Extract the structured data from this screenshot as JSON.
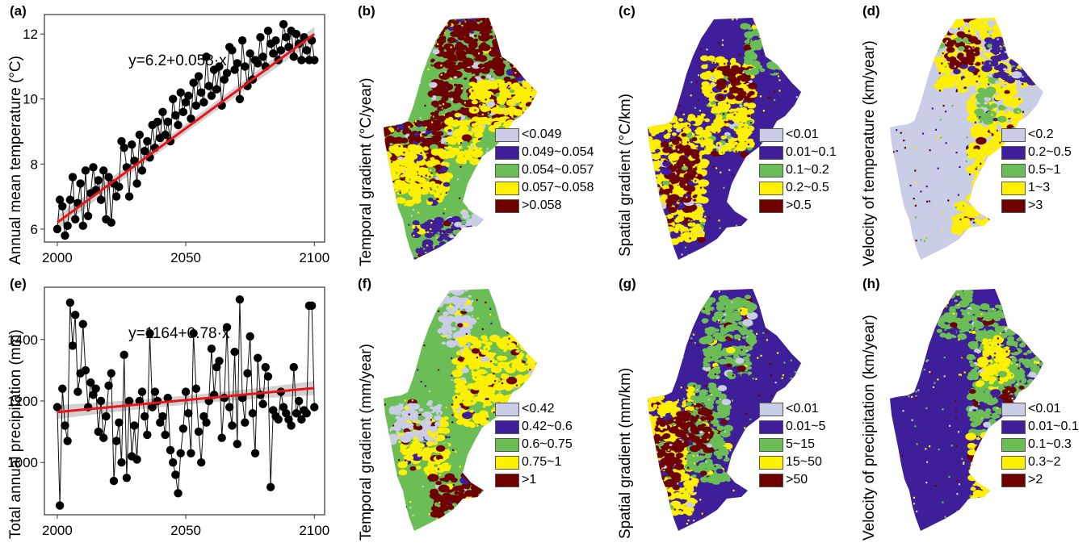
{
  "chart_data": [
    {
      "id": "a",
      "type": "scatter",
      "panel_label": "(a)",
      "ylabel": "Annual mean temperature (°C)",
      "equation": "y=6.2+0.058·x",
      "xlim": [
        1995,
        2104
      ],
      "ylim": [
        5.6,
        12.6
      ],
      "xticks": [
        2000,
        2050,
        2100
      ],
      "yticks": [
        6,
        8,
        10,
        12
      ],
      "trend": {
        "intercept": 6.2,
        "slope": 0.058,
        "x0": 2000
      },
      "x": [
        2000,
        2001,
        2002,
        2003,
        2004,
        2005,
        2006,
        2007,
        2008,
        2009,
        2010,
        2011,
        2012,
        2013,
        2014,
        2015,
        2016,
        2017,
        2018,
        2019,
        2020,
        2021,
        2022,
        2023,
        2024,
        2025,
        2026,
        2027,
        2028,
        2029,
        2030,
        2031,
        2032,
        2033,
        2034,
        2035,
        2036,
        2037,
        2038,
        2039,
        2040,
        2041,
        2042,
        2043,
        2044,
        2045,
        2046,
        2047,
        2048,
        2049,
        2050,
        2051,
        2052,
        2053,
        2054,
        2055,
        2056,
        2057,
        2058,
        2059,
        2060,
        2061,
        2062,
        2063,
        2064,
        2065,
        2066,
        2067,
        2068,
        2069,
        2070,
        2071,
        2072,
        2073,
        2074,
        2075,
        2076,
        2077,
        2078,
        2079,
        2080,
        2081,
        2082,
        2083,
        2084,
        2085,
        2086,
        2087,
        2088,
        2089,
        2090,
        2091,
        2092,
        2093,
        2094,
        2095,
        2096,
        2097,
        2098,
        2099,
        2100
      ],
      "y": [
        6.0,
        6.9,
        6.7,
        5.8,
        6.1,
        6.9,
        7.6,
        6.3,
        6.8,
        7.4,
        6.1,
        7.8,
        6.4,
        7.1,
        7.9,
        7.2,
        7.5,
        6.9,
        7.8,
        6.3,
        7.6,
        6.2,
        7.4,
        7.0,
        7.3,
        8.7,
        8.5,
        7.9,
        7.0,
        8.6,
        8.1,
        7.4,
        8.9,
        7.8,
        8.4,
        8.7,
        8.2,
        9.2,
        8.5,
        9.3,
        8.8,
        9.6,
        8.9,
        9.3,
        8.7,
        10.0,
        9.5,
        9.2,
        10.2,
        9.6,
        9.9,
        10.1,
        9.4,
        10.5,
        9.8,
        10.7,
        10.2,
        9.9,
        11.3,
        10.4,
        10.1,
        10.9,
        10.3,
        11.0,
        9.8,
        10.6,
        10.8,
        11.6,
        11.5,
        10.9,
        11.1,
        10.0,
        11.8,
        11.0,
        10.4,
        11.4,
        10.6,
        11.2,
        11.1,
        11.9,
        11.3,
        11.0,
        12.1,
        11.7,
        11.4,
        11.8,
        11.2,
        11.5,
        12.3,
        11.9,
        11.6,
        12.1,
        11.3,
        12.0,
        11.7,
        11.2,
        11.9,
        11.5,
        11.2,
        11.8,
        11.2
      ]
    },
    {
      "id": "e",
      "type": "scatter",
      "panel_label": "(e)",
      "ylabel": "Total annual precipitation (mm)",
      "equation": "y=1164+0.78·x",
      "xlim": [
        1995,
        2104
      ],
      "ylim": [
        830,
        1570
      ],
      "xticks": [
        2000,
        2050,
        2100
      ],
      "yticks": [
        1000,
        1200,
        1400
      ],
      "trend": {
        "intercept": 1164,
        "slope": 0.78,
        "x0": 2000
      },
      "x": [
        2000,
        2001,
        2002,
        2003,
        2004,
        2005,
        2006,
        2007,
        2008,
        2009,
        2010,
        2011,
        2012,
        2013,
        2014,
        2015,
        2016,
        2017,
        2018,
        2019,
        2020,
        2021,
        2022,
        2023,
        2024,
        2025,
        2026,
        2027,
        2028,
        2029,
        2030,
        2031,
        2032,
        2033,
        2034,
        2035,
        2036,
        2037,
        2038,
        2039,
        2040,
        2041,
        2042,
        2043,
        2044,
        2045,
        2046,
        2047,
        2048,
        2049,
        2050,
        2051,
        2052,
        2053,
        2054,
        2055,
        2056,
        2057,
        2058,
        2059,
        2060,
        2061,
        2062,
        2063,
        2064,
        2065,
        2066,
        2067,
        2068,
        2069,
        2070,
        2071,
        2072,
        2073,
        2074,
        2075,
        2076,
        2077,
        2078,
        2079,
        2080,
        2081,
        2082,
        2083,
        2084,
        2085,
        2086,
        2087,
        2088,
        2089,
        2090,
        2091,
        2092,
        2093,
        2094,
        2095,
        2096,
        2097,
        2098,
        2099,
        2100
      ],
      "y": [
        1180,
        860,
        1240,
        1120,
        1070,
        1520,
        1380,
        1480,
        1230,
        1290,
        1450,
        1300,
        1180,
        1260,
        1220,
        1240,
        1100,
        1200,
        1080,
        1150,
        1250,
        1290,
        940,
        1070,
        1130,
        1000,
        1350,
        950,
        1200,
        1020,
        1120,
        1010,
        1200,
        1230,
        1150,
        1090,
        1420,
        1180,
        1230,
        1200,
        1130,
        1150,
        1090,
        1210,
        1040,
        1000,
        960,
        900,
        1030,
        1110,
        1230,
        1160,
        1030,
        1420,
        1240,
        1100,
        1000,
        1150,
        1130,
        1200,
        1370,
        1220,
        1310,
        1330,
        1080,
        1210,
        1440,
        1180,
        1120,
        1360,
        1060,
        1530,
        1210,
        1130,
        1290,
        1410,
        1160,
        1030,
        1340,
        1220,
        1190,
        1310,
        1280,
        920,
        1170,
        1150,
        1140,
        1230,
        1180,
        1160,
        1140,
        1120,
        1310,
        1160,
        1200,
        1140,
        1170,
        1160,
        1510,
        1510,
        1180
      ]
    },
    {
      "id": "b",
      "type": "heatmap",
      "panel_label": "(b)",
      "ylabel": "Temporal gradient (°C/year)",
      "legend": [
        {
          "label": "<0.049",
          "color": "#c9cde6"
        },
        {
          "label": "0.049~0.054",
          "color": "#3f1f99"
        },
        {
          "label": "0.054~0.057",
          "color": "#6bbd55"
        },
        {
          "label": "0.057~0.058",
          "color": "#ffef00"
        },
        {
          "label": ">0.058",
          "color": "#6e0000"
        }
      ]
    },
    {
      "id": "c",
      "type": "heatmap",
      "panel_label": "(c)",
      "ylabel": "Spatial gradient (°C/km)",
      "legend": [
        {
          "label": "<0.01",
          "color": "#c9cde6"
        },
        {
          "label": "0.01~0.1",
          "color": "#3f1f99"
        },
        {
          "label": "0.1~0.2",
          "color": "#6bbd55"
        },
        {
          "label": "0.2~0.5",
          "color": "#ffef00"
        },
        {
          "label": ">0.5",
          "color": "#6e0000"
        }
      ]
    },
    {
      "id": "d",
      "type": "heatmap",
      "panel_label": "(d)",
      "ylabel": "Velocity of temperature (km/year)",
      "legend": [
        {
          "label": "<0.2",
          "color": "#c9cde6"
        },
        {
          "label": "0.2~0.5",
          "color": "#3f1f99"
        },
        {
          "label": "0.5~1",
          "color": "#6bbd55"
        },
        {
          "label": "1~3",
          "color": "#ffef00"
        },
        {
          "label": ">3",
          "color": "#6e0000"
        }
      ]
    },
    {
      "id": "f",
      "type": "heatmap",
      "panel_label": "(f)",
      "ylabel": "Temporal gradient (mm/year)",
      "legend": [
        {
          "label": "<0.42",
          "color": "#c9cde6"
        },
        {
          "label": "0.42~0.6",
          "color": "#3f1f99"
        },
        {
          "label": "0.6~0.75",
          "color": "#6bbd55"
        },
        {
          "label": "0.75~1",
          "color": "#ffef00"
        },
        {
          "label": ">1",
          "color": "#6e0000"
        }
      ]
    },
    {
      "id": "g",
      "type": "heatmap",
      "panel_label": "(g)",
      "ylabel": "Spatial gradient (mm/km)",
      "legend": [
        {
          "label": "<0.01",
          "color": "#c9cde6"
        },
        {
          "label": "0.01~5",
          "color": "#3f1f99"
        },
        {
          "label": "5~15",
          "color": "#6bbd55"
        },
        {
          "label": "15~50",
          "color": "#ffef00"
        },
        {
          "label": ">50",
          "color": "#6e0000"
        }
      ]
    },
    {
      "id": "h",
      "type": "heatmap",
      "panel_label": "(h)",
      "ylabel": "Velocity of precipitation (km/year)",
      "legend": [
        {
          "label": "<0.01",
          "color": "#c9cde6"
        },
        {
          "label": "0.01~0.1",
          "color": "#3f1f99"
        },
        {
          "label": "0.1~0.3",
          "color": "#6bbd55"
        },
        {
          "label": "0.3~2",
          "color": "#ffef00"
        },
        {
          "label": ">2",
          "color": "#6e0000"
        }
      ]
    }
  ]
}
